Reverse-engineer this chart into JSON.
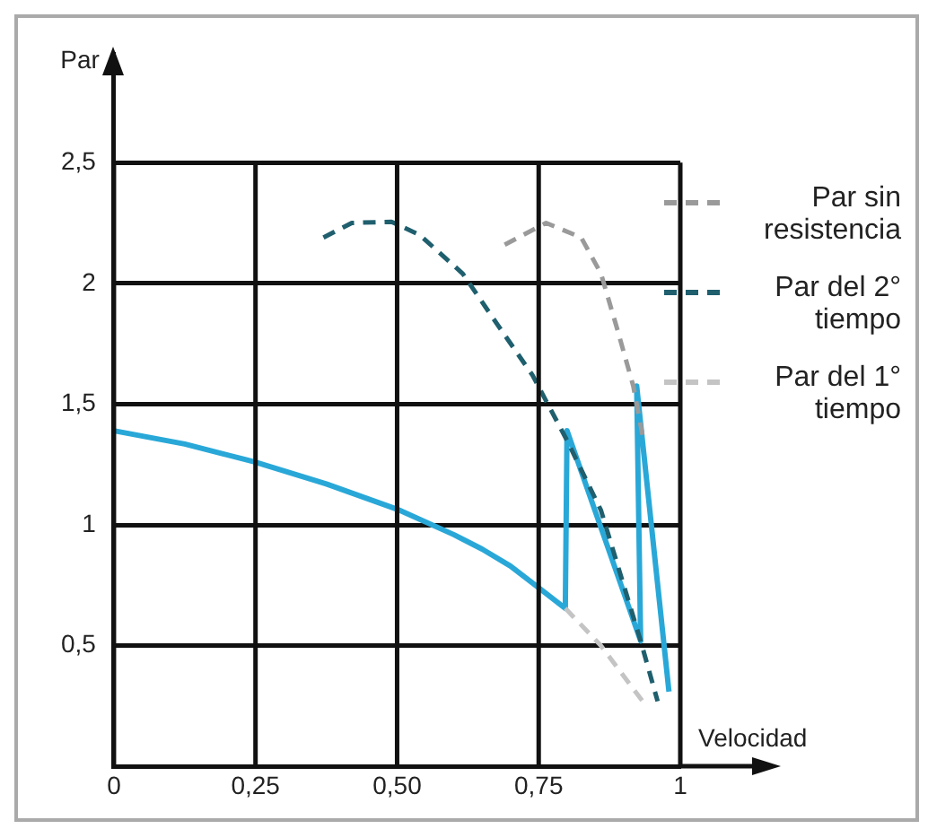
{
  "chart_data": {
    "type": "line",
    "xlabel": "Velocidad",
    "ylabel": "Par",
    "xlim": [
      0,
      1
    ],
    "ylim": [
      0,
      2.95
    ],
    "xticks": [
      {
        "value": 0,
        "label": "0"
      },
      {
        "value": 0.25,
        "label": "0,25"
      },
      {
        "value": 0.5,
        "label": "0,50"
      },
      {
        "value": 0.75,
        "label": "0,75"
      },
      1
    ],
    "yticks": [
      {
        "value": 0.5,
        "label": "0,5"
      },
      1,
      {
        "value": 1.5,
        "label": "1,5"
      },
      2,
      {
        "value": 2.5,
        "label": "2,5"
      }
    ],
    "grid": true,
    "legend": "right",
    "marker": "none",
    "series": [
      {
        "name": "Par sin resistencia",
        "color": "#9a9a9a",
        "line_style": "dashed",
        "x": [
          0.69,
          0.763,
          0.825,
          0.86,
          0.89,
          0.917,
          0.935
        ],
        "values": [
          2.16,
          2.25,
          2.19,
          2.04,
          1.8,
          1.575,
          1.35
        ]
      },
      {
        "name": "Par del 2° tiempo",
        "color": "#1f5f6e",
        "line_style": "dashed",
        "x": [
          0.37,
          0.42,
          0.49,
          0.54,
          0.616,
          0.677,
          0.739,
          0.8,
          0.86,
          0.93,
          0.96
        ],
        "values": [
          2.19,
          2.25,
          2.255,
          2.2,
          2.04,
          1.83,
          1.62,
          1.35,
          1.06,
          0.52,
          0.27
        ]
      },
      {
        "name": "Par del 1° tiempo",
        "color": "#c4c4c4",
        "line_style": "dashed",
        "x": [
          0.797,
          0.86,
          0.94
        ],
        "values": [
          0.655,
          0.5,
          0.25
        ]
      },
      {
        "color": "#29a8d8",
        "line_style": "solid",
        "x": [
          0,
          0.125,
          0.25,
          0.375,
          0.5,
          0.6,
          0.65,
          0.7,
          0.75,
          0.797,
          0.8,
          0.93,
          0.923,
          0.98
        ],
        "values": [
          1.39,
          1.335,
          1.26,
          1.17,
          1.065,
          0.96,
          0.9,
          0.83,
          0.74,
          0.655,
          1.39,
          0.52,
          1.575,
          0.31
        ]
      }
    ]
  }
}
